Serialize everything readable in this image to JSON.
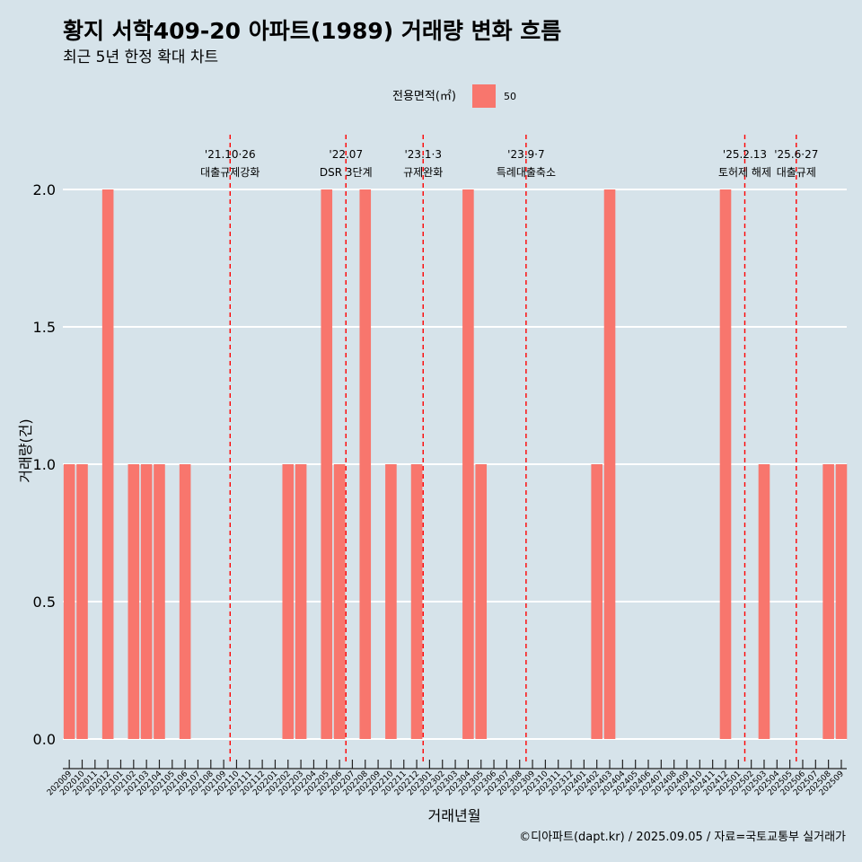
{
  "chart_data": {
    "type": "bar",
    "title": "황지 서학409-20 아파트(1989) 거래량 변화 흐름",
    "subtitle": "최근 5년 한정 확대 차트",
    "xlabel": "거래년월",
    "ylabel": "거래량(건)",
    "ylim": [
      0,
      2
    ],
    "yticks": [
      "0.0",
      "0.5",
      "1.0",
      "1.5",
      "2.0"
    ],
    "grid": true,
    "legend": {
      "title": "전용면적(㎡)",
      "placement": "top",
      "items": [
        {
          "label": "50",
          "color": "#f8766d"
        }
      ]
    },
    "categories": [
      "202009",
      "202010",
      "202011",
      "202012",
      "202101",
      "202102",
      "202103",
      "202104",
      "202105",
      "202106",
      "202107",
      "202108",
      "202109",
      "202110",
      "202111",
      "202112",
      "202201",
      "202202",
      "202203",
      "202204",
      "202205",
      "202206",
      "202207",
      "202208",
      "202209",
      "202210",
      "202211",
      "202212",
      "202301",
      "202302",
      "202303",
      "202304",
      "202305",
      "202306",
      "202307",
      "202308",
      "202309",
      "202310",
      "202311",
      "202312",
      "202401",
      "202402",
      "202403",
      "202404",
      "202405",
      "202406",
      "202407",
      "202408",
      "202409",
      "202410",
      "202411",
      "202412",
      "202501",
      "202502",
      "202503",
      "202504",
      "202505",
      "202506",
      "202507",
      "202508",
      "202509"
    ],
    "series": [
      {
        "name": "50",
        "color": "#f8766d",
        "values": [
          1,
          1,
          0,
          2,
          0,
          1,
          1,
          1,
          0,
          1,
          0,
          0,
          0,
          0,
          0,
          0,
          0,
          1,
          1,
          0,
          2,
          1,
          0,
          2,
          0,
          1,
          0,
          1,
          0,
          0,
          0,
          2,
          1,
          0,
          0,
          0,
          0,
          0,
          0,
          0,
          0,
          1,
          2,
          0,
          0,
          0,
          0,
          0,
          0,
          0,
          0,
          2,
          0,
          0,
          1,
          0,
          0,
          0,
          0,
          1,
          1
        ]
      }
    ],
    "annotations": [
      {
        "at": "202110",
        "line1": "'21.10·26",
        "line2": "대출규제강화",
        "style": "dashed",
        "color": "#ff0000"
      },
      {
        "at": "202207",
        "line1": "'22.07",
        "line2": "DSR 3단계",
        "style": "dashed",
        "color": "#ff0000"
      },
      {
        "at": "202301",
        "line1": "'23.1·3",
        "line2": "규제완화",
        "style": "dashed",
        "color": "#ff0000"
      },
      {
        "at": "202309",
        "line1": "'23.9·7",
        "line2": "특례대출축소",
        "style": "dashed",
        "color": "#ff0000"
      },
      {
        "at": "202502",
        "line1": "'25.2.13",
        "line2": "토허제 해제",
        "style": "dashed",
        "color": "#ff0000"
      },
      {
        "at": "202506",
        "line1": "'25.6·27",
        "line2": "대출규제",
        "style": "dashed",
        "color": "#ff0000"
      }
    ],
    "caption": "©디아파트(dapt.kr) / 2025.09.05 / 자료=국토교통부 실거래가"
  }
}
